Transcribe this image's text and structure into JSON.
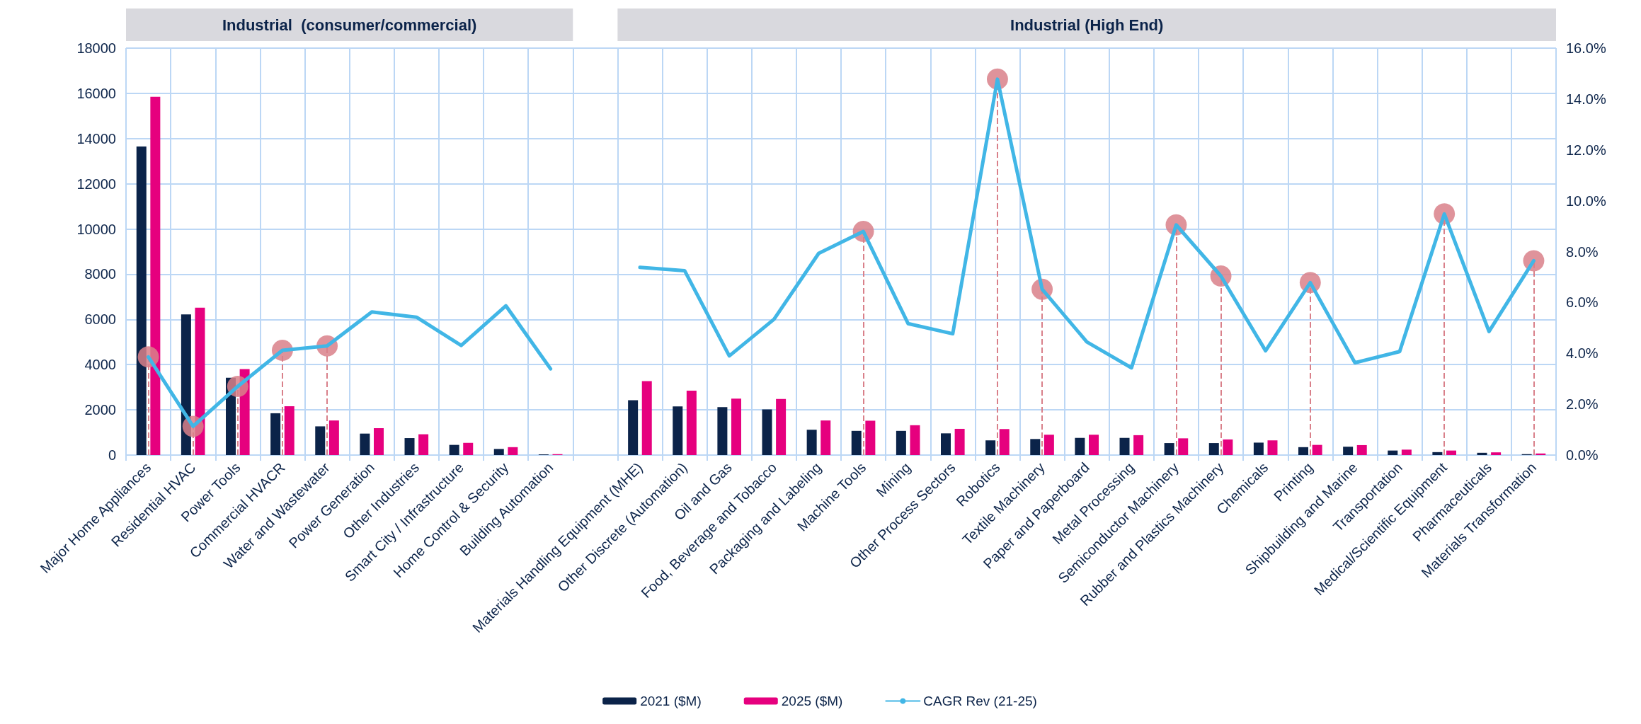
{
  "chart_data": {
    "type": "bar",
    "annotations": [
      "Industrial  (consumer/commercial)",
      "Industrial (High End)"
    ],
    "categories": [
      "Major Home Appliances",
      "Residential HVAC",
      "Power Tools",
      "Commercial HVACR",
      "Water and Wastewater",
      "Power Generation",
      "Other Industries",
      "Smart City / Infrastructure",
      "Home Control & Security",
      "Building Automation",
      null,
      "Materials Handling Equipment (MHE)",
      "Other Discrete (Automation)",
      "Oil and Gas",
      "Food, Beverage and Tobacco",
      "Packaging and Labeling",
      "Machine Tools",
      "Mining",
      "Other Process Sectors",
      "Robotics",
      "Textile Machinery",
      "Paper and Paperboard",
      "Metal Processing",
      "Semiconductor Machinery",
      "Rubber and Plastics Machinery",
      "Chemicals",
      "Printing",
      "Shipbuilding and Marine",
      "Transportation",
      "Medical/Scientific Equipment",
      "Pharmaceuticals",
      "Materials Transformation"
    ],
    "series": [
      {
        "name": "2021 ($M)",
        "color": "#0b2349",
        "values": [
          13650,
          6220,
          3420,
          1850,
          1270,
          950,
          750,
          450,
          270,
          30,
          null,
          2430,
          2150,
          2120,
          2020,
          1120,
          1070,
          1070,
          960,
          650,
          710,
          760,
          760,
          530,
          530,
          550,
          350,
          370,
          200,
          130,
          100,
          40
        ]
      },
      {
        "name": "2025 ($M)",
        "color": "#e6007e",
        "values": [
          15850,
          6520,
          3800,
          2160,
          1530,
          1190,
          920,
          540,
          350,
          40,
          null,
          3270,
          2850,
          2500,
          2480,
          1530,
          1520,
          1320,
          1160,
          1150,
          900,
          900,
          880,
          740,
          690,
          650,
          450,
          440,
          240,
          200,
          120,
          70
        ]
      },
      {
        "name": "CAGR Rev (21-25)",
        "type": "line",
        "axis": "y2",
        "color": "#41b6e6",
        "marker": "none",
        "values": [
          3.86,
          1.13,
          2.7,
          4.12,
          4.29,
          5.63,
          5.42,
          4.31,
          5.87,
          3.39,
          null,
          7.38,
          7.25,
          3.9,
          5.34,
          7.93,
          8.79,
          5.17,
          4.77,
          14.78,
          6.52,
          4.45,
          3.43,
          9.05,
          7.04,
          4.1,
          6.78,
          3.63,
          4.07,
          9.48,
          4.86,
          7.64
        ]
      },
      {
        "type": "lollipop",
        "axis": "y2",
        "color": "#d9808a",
        "marker": "circle",
        "line_style": "dashed",
        "values": [
          3.86,
          1.13,
          2.7,
          4.12,
          4.29,
          null,
          null,
          null,
          null,
          null,
          null,
          null,
          null,
          null,
          null,
          null,
          8.79,
          null,
          null,
          14.78,
          6.52,
          null,
          null,
          9.05,
          7.04,
          null,
          6.78,
          null,
          null,
          9.48,
          null,
          7.64
        ]
      }
    ],
    "ylim": [
      0,
      18000
    ],
    "yticks": [
      0,
      2000,
      4000,
      6000,
      8000,
      10000,
      12000,
      14000,
      16000,
      18000
    ],
    "y2lim": [
      0,
      16
    ],
    "y2ticks": [
      {
        "value": 0,
        "label": "0.0%"
      },
      {
        "value": 2,
        "label": "2.0%"
      },
      {
        "value": 4,
        "label": "4.0%"
      },
      {
        "value": 6,
        "label": "6.0%"
      },
      {
        "value": 8,
        "label": "8.0%"
      },
      {
        "value": 10,
        "label": "10.0%"
      },
      {
        "value": 12,
        "label": "12.0%"
      },
      {
        "value": 14,
        "label": "14.0%"
      },
      {
        "value": 16,
        "label": "16.0%"
      }
    ],
    "grid": true,
    "legend": "bottom"
  }
}
